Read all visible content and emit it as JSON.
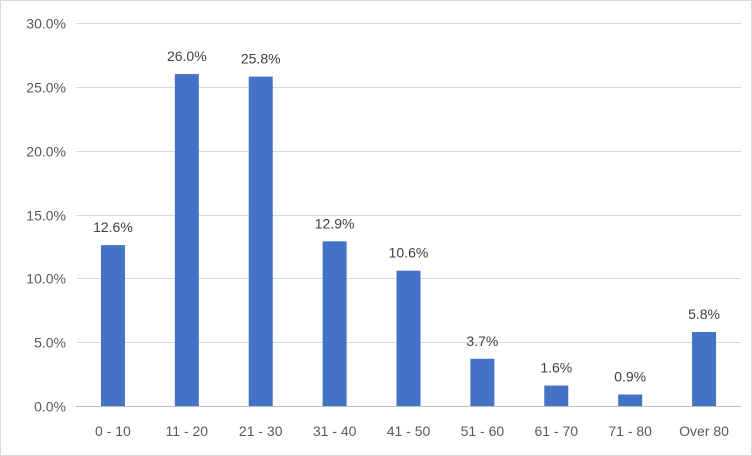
{
  "chart_data": {
    "type": "bar",
    "categories": [
      "0 - 10",
      "11 - 20",
      "21 - 30",
      "31 - 40",
      "41 - 50",
      "51 - 60",
      "61 - 70",
      "71 - 80",
      "Over 80"
    ],
    "values": [
      12.6,
      26.0,
      25.8,
      12.9,
      10.6,
      3.7,
      1.6,
      0.9,
      5.8
    ],
    "data_labels": [
      "12.6%",
      "26.0%",
      "25.8%",
      "12.9%",
      "10.6%",
      "3.7%",
      "1.6%",
      "0.9%",
      "5.8%"
    ],
    "y_ticks": [
      0,
      5,
      10,
      15,
      20,
      25,
      30
    ],
    "y_tick_labels": [
      "0.0%",
      "5.0%",
      "10.0%",
      "15.0%",
      "20.0%",
      "25.0%",
      "30.0%"
    ],
    "ylim": [
      0,
      30
    ],
    "title": "",
    "xlabel": "",
    "ylabel": "",
    "grid": true,
    "legend": "none",
    "colors": {
      "bar": "#4472C4",
      "grid": "#d9d9d9",
      "text": "#595959"
    }
  }
}
